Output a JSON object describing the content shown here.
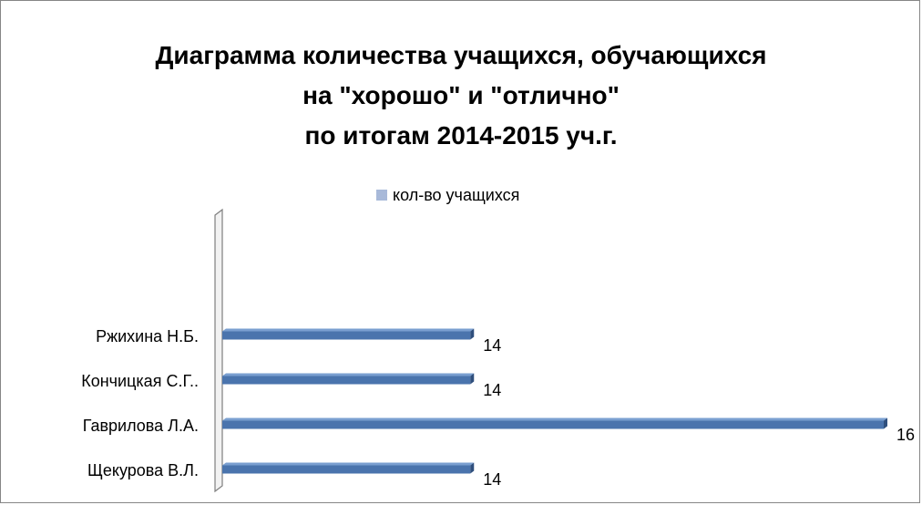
{
  "chart_data": {
    "type": "bar",
    "orientation": "horizontal",
    "title_lines": [
      "Диаграмма количества учащихся, обучающихся",
      "на \"хорошо\" и \"отлично\"",
      "по итогам 2014-2015 уч.г."
    ],
    "legend_position": "top",
    "categories": [
      "Ржихина Н.Б.",
      "Кончицкая С.Г..",
      "Гаврилова Л.А.",
      "Щекурова В.Л."
    ],
    "series": [
      {
        "name": "кол-во учащихся",
        "values": [
          14,
          14,
          16,
          14
        ]
      }
    ],
    "data_labels": [
      "14",
      "14",
      "16",
      "14"
    ],
    "xlim": [
      12.8,
      16
    ],
    "x_axis_visible": false,
    "grid": false,
    "colors": {
      "bar": "#4a74ad",
      "bar_top": "#7a9fd0",
      "bar_end": "#2f4f7d",
      "legend_swatch": "#a8b9d9",
      "axis_wall": "#f2f2f2",
      "axis_wall_border": "#7f7f7f"
    }
  }
}
